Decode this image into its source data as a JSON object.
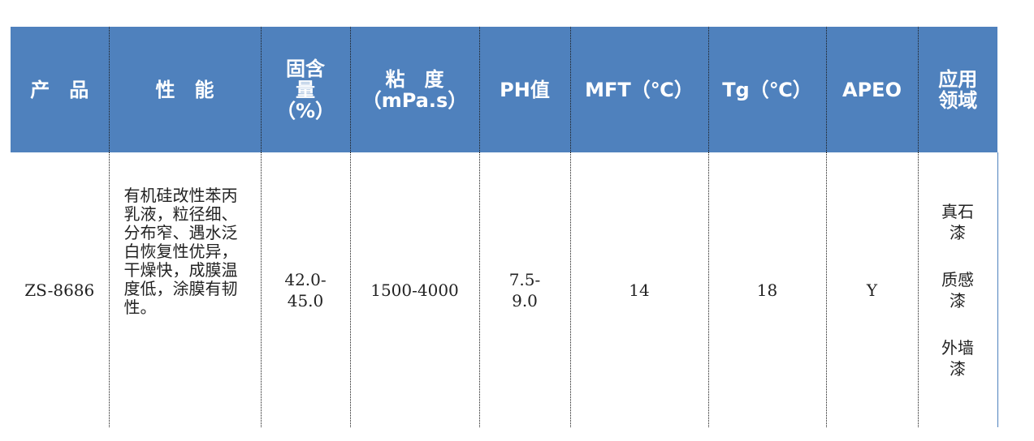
{
  "table": {
    "header": [
      [
        "产　品"
      ],
      [
        "性　能"
      ],
      [
        "固含",
        "量",
        "（%）"
      ],
      [
        "粘　度",
        "（mPa.s）"
      ],
      [
        "PH值"
      ],
      [
        "MFT（℃）"
      ],
      [
        "Tg（℃）"
      ],
      [
        "APEO"
      ],
      [
        "应用",
        "领域"
      ]
    ],
    "rows": [
      [
        [
          "ZS-8686"
        ],
        [
          "有机硅改性苯丙乳液，粒径细、分布窄、遇水泛白恢复性优异，干燥快，成膜温度低，涂膜有韧性。"
        ],
        [
          "42.0-",
          "45.0"
        ],
        [
          "1500-4000"
        ],
        [
          "7.5-",
          "9.0"
        ],
        [
          "14"
        ],
        [
          "18"
        ],
        [
          "Y"
        ],
        [
          "真石",
          "漆",
          "质感",
          "漆",
          "外墙",
          "漆"
        ]
      ]
    ]
  }
}
